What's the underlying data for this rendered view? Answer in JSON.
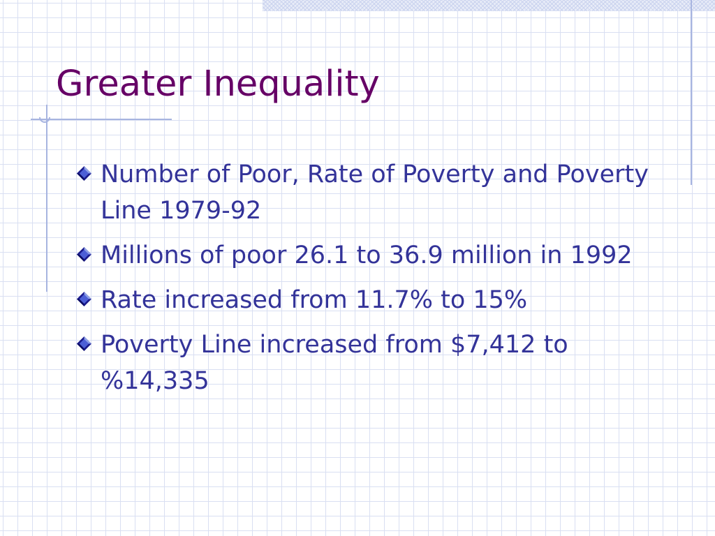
{
  "slide": {
    "title": "Greater Inequality",
    "bullets": [
      {
        "text": "Number of Poor, Rate of Poverty and Poverty Line 1979-92",
        "icon": "diamond-bullet-icon"
      },
      {
        "text": "Millions of poor 26.1 to 36.9 million in 1992",
        "icon": "diamond-bullet-icon"
      },
      {
        "text": "Rate increased from 11.7% to 15%",
        "icon": "diamond-bullet-icon"
      },
      {
        "text": "Poverty Line increased from $7,412 to %14,335",
        "icon": "diamond-bullet-icon"
      }
    ]
  },
  "colors": {
    "title": "#660066",
    "body_text": "#333399",
    "grid": "#d9dff2",
    "accent_rule": "#a7b4e0"
  }
}
